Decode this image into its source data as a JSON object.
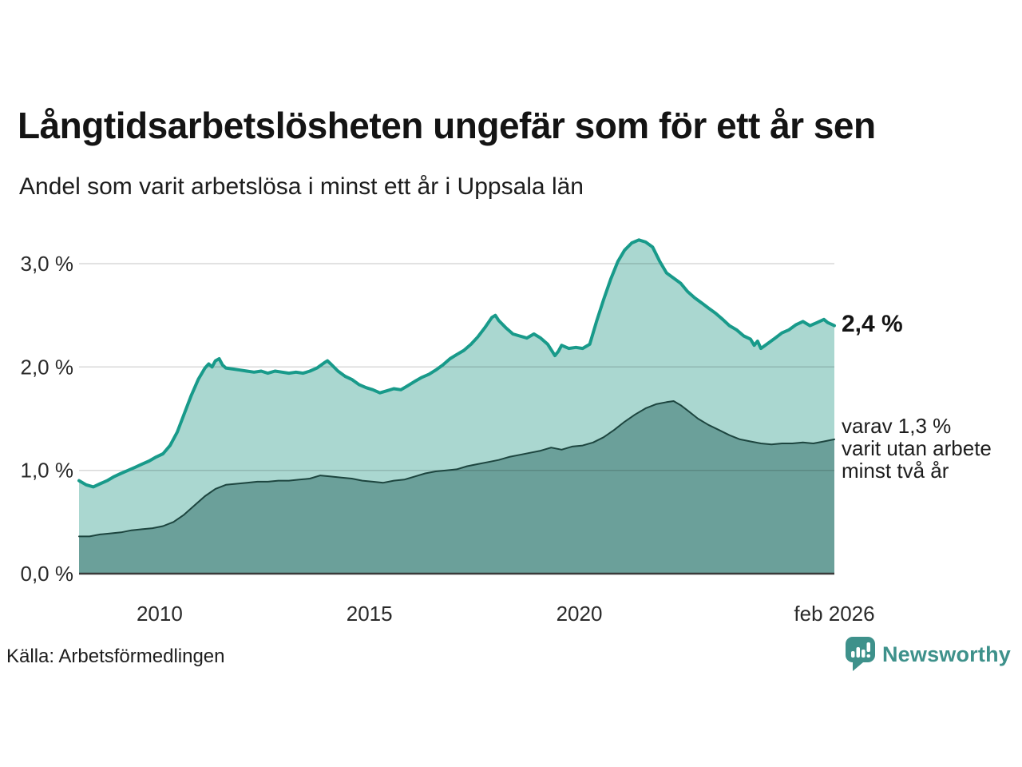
{
  "header": {
    "title": "Långtidsarbetslösheten ungefär som för ett år sen",
    "subtitle": "Andel som varit arbetslösa i minst ett år i Uppsala län"
  },
  "chart_data": {
    "type": "area",
    "title": "Långtidsarbetslösheten ungefär som för ett år sen",
    "subtitle": "Andel som varit arbetslösa i minst ett år i Uppsala län",
    "unit": "%",
    "x_domain": [
      2008.08,
      2026.08
    ],
    "ylim": [
      0,
      3.3
    ],
    "grid": "horizontal-only",
    "legend": "none",
    "y_ticks": [
      {
        "v": 0,
        "label": "0,0 %"
      },
      {
        "v": 1,
        "label": "1,0 %"
      },
      {
        "v": 2,
        "label": "2,0 %"
      },
      {
        "v": 3,
        "label": "3,0 %"
      }
    ],
    "x_ticks": [
      {
        "year": 2010,
        "label": "2010"
      },
      {
        "year": 2015,
        "label": "2015"
      },
      {
        "year": 2020,
        "label": "2020"
      },
      {
        "year": 2026.08,
        "label": "feb 2026"
      }
    ],
    "series": [
      {
        "name": "Andel som varit arbetslösa minst ett år",
        "latest_value": 2.4,
        "line_color": "#189a8a",
        "fill_color": "#aad7d0",
        "line_width": 4,
        "points": [
          [
            2008.08,
            0.9
          ],
          [
            2008.25,
            0.86
          ],
          [
            2008.42,
            0.84
          ],
          [
            2008.58,
            0.87
          ],
          [
            2008.75,
            0.9
          ],
          [
            2008.92,
            0.94
          ],
          [
            2009.08,
            0.97
          ],
          [
            2009.25,
            1.0
          ],
          [
            2009.42,
            1.03
          ],
          [
            2009.58,
            1.06
          ],
          [
            2009.75,
            1.09
          ],
          [
            2009.92,
            1.13
          ],
          [
            2010.08,
            1.16
          ],
          [
            2010.25,
            1.24
          ],
          [
            2010.42,
            1.37
          ],
          [
            2010.58,
            1.54
          ],
          [
            2010.75,
            1.72
          ],
          [
            2010.92,
            1.88
          ],
          [
            2011.08,
            1.99
          ],
          [
            2011.17,
            2.03
          ],
          [
            2011.25,
            2.0
          ],
          [
            2011.33,
            2.06
          ],
          [
            2011.42,
            2.08
          ],
          [
            2011.5,
            2.02
          ],
          [
            2011.58,
            1.99
          ],
          [
            2011.75,
            1.98
          ],
          [
            2011.92,
            1.97
          ],
          [
            2012.08,
            1.96
          ],
          [
            2012.25,
            1.95
          ],
          [
            2012.42,
            1.96
          ],
          [
            2012.58,
            1.94
          ],
          [
            2012.75,
            1.96
          ],
          [
            2012.92,
            1.95
          ],
          [
            2013.08,
            1.94
          ],
          [
            2013.25,
            1.95
          ],
          [
            2013.42,
            1.94
          ],
          [
            2013.58,
            1.96
          ],
          [
            2013.75,
            1.99
          ],
          [
            2013.92,
            2.04
          ],
          [
            2014.0,
            2.06
          ],
          [
            2014.08,
            2.03
          ],
          [
            2014.25,
            1.96
          ],
          [
            2014.42,
            1.91
          ],
          [
            2014.58,
            1.88
          ],
          [
            2014.75,
            1.83
          ],
          [
            2014.92,
            1.8
          ],
          [
            2015.08,
            1.78
          ],
          [
            2015.25,
            1.75
          ],
          [
            2015.42,
            1.77
          ],
          [
            2015.58,
            1.79
          ],
          [
            2015.75,
            1.78
          ],
          [
            2015.92,
            1.82
          ],
          [
            2016.08,
            1.86
          ],
          [
            2016.25,
            1.9
          ],
          [
            2016.42,
            1.93
          ],
          [
            2016.58,
            1.97
          ],
          [
            2016.75,
            2.02
          ],
          [
            2016.92,
            2.08
          ],
          [
            2017.08,
            2.12
          ],
          [
            2017.25,
            2.16
          ],
          [
            2017.42,
            2.22
          ],
          [
            2017.58,
            2.29
          ],
          [
            2017.75,
            2.38
          ],
          [
            2017.92,
            2.48
          ],
          [
            2018.0,
            2.5
          ],
          [
            2018.08,
            2.45
          ],
          [
            2018.25,
            2.38
          ],
          [
            2018.42,
            2.32
          ],
          [
            2018.58,
            2.3
          ],
          [
            2018.75,
            2.28
          ],
          [
            2018.92,
            2.32
          ],
          [
            2019.08,
            2.28
          ],
          [
            2019.25,
            2.22
          ],
          [
            2019.42,
            2.11
          ],
          [
            2019.5,
            2.15
          ],
          [
            2019.58,
            2.21
          ],
          [
            2019.75,
            2.18
          ],
          [
            2019.92,
            2.19
          ],
          [
            2020.08,
            2.18
          ],
          [
            2020.25,
            2.22
          ],
          [
            2020.42,
            2.45
          ],
          [
            2020.58,
            2.65
          ],
          [
            2020.75,
            2.85
          ],
          [
            2020.92,
            3.02
          ],
          [
            2021.08,
            3.13
          ],
          [
            2021.25,
            3.2
          ],
          [
            2021.42,
            3.23
          ],
          [
            2021.58,
            3.21
          ],
          [
            2021.75,
            3.16
          ],
          [
            2021.92,
            3.02
          ],
          [
            2022.08,
            2.91
          ],
          [
            2022.25,
            2.86
          ],
          [
            2022.42,
            2.81
          ],
          [
            2022.58,
            2.73
          ],
          [
            2022.75,
            2.67
          ],
          [
            2022.92,
            2.62
          ],
          [
            2023.08,
            2.57
          ],
          [
            2023.25,
            2.52
          ],
          [
            2023.42,
            2.46
          ],
          [
            2023.58,
            2.4
          ],
          [
            2023.75,
            2.36
          ],
          [
            2023.92,
            2.3
          ],
          [
            2024.08,
            2.27
          ],
          [
            2024.17,
            2.21
          ],
          [
            2024.25,
            2.25
          ],
          [
            2024.33,
            2.18
          ],
          [
            2024.5,
            2.23
          ],
          [
            2024.67,
            2.28
          ],
          [
            2024.83,
            2.33
          ],
          [
            2025.0,
            2.36
          ],
          [
            2025.17,
            2.41
          ],
          [
            2025.33,
            2.44
          ],
          [
            2025.5,
            2.4
          ],
          [
            2025.67,
            2.43
          ],
          [
            2025.83,
            2.46
          ],
          [
            2025.92,
            2.43
          ],
          [
            2026.08,
            2.4
          ]
        ]
      },
      {
        "name": "varav arbetslösa minst två år",
        "latest_value": 1.3,
        "line_color": "#1d453f",
        "fill_color": "#6ba09a",
        "line_width": 2,
        "points": [
          [
            2008.08,
            0.36
          ],
          [
            2008.33,
            0.36
          ],
          [
            2008.58,
            0.38
          ],
          [
            2008.83,
            0.39
          ],
          [
            2009.08,
            0.4
          ],
          [
            2009.33,
            0.42
          ],
          [
            2009.58,
            0.43
          ],
          [
            2009.83,
            0.44
          ],
          [
            2010.08,
            0.46
          ],
          [
            2010.33,
            0.5
          ],
          [
            2010.58,
            0.57
          ],
          [
            2010.83,
            0.66
          ],
          [
            2011.08,
            0.75
          ],
          [
            2011.33,
            0.82
          ],
          [
            2011.58,
            0.86
          ],
          [
            2011.83,
            0.87
          ],
          [
            2012.08,
            0.88
          ],
          [
            2012.33,
            0.89
          ],
          [
            2012.58,
            0.89
          ],
          [
            2012.83,
            0.9
          ],
          [
            2013.08,
            0.9
          ],
          [
            2013.33,
            0.91
          ],
          [
            2013.58,
            0.92
          ],
          [
            2013.83,
            0.95
          ],
          [
            2014.08,
            0.94
          ],
          [
            2014.33,
            0.93
          ],
          [
            2014.58,
            0.92
          ],
          [
            2014.83,
            0.9
          ],
          [
            2015.08,
            0.89
          ],
          [
            2015.33,
            0.88
          ],
          [
            2015.58,
            0.9
          ],
          [
            2015.83,
            0.91
          ],
          [
            2016.08,
            0.94
          ],
          [
            2016.33,
            0.97
          ],
          [
            2016.58,
            0.99
          ],
          [
            2016.83,
            1.0
          ],
          [
            2017.08,
            1.01
          ],
          [
            2017.33,
            1.04
          ],
          [
            2017.58,
            1.06
          ],
          [
            2017.83,
            1.08
          ],
          [
            2018.08,
            1.1
          ],
          [
            2018.33,
            1.13
          ],
          [
            2018.58,
            1.15
          ],
          [
            2018.83,
            1.17
          ],
          [
            2019.08,
            1.19
          ],
          [
            2019.33,
            1.22
          ],
          [
            2019.58,
            1.2
          ],
          [
            2019.83,
            1.23
          ],
          [
            2020.08,
            1.24
          ],
          [
            2020.33,
            1.27
          ],
          [
            2020.58,
            1.32
          ],
          [
            2020.83,
            1.39
          ],
          [
            2021.08,
            1.47
          ],
          [
            2021.33,
            1.54
          ],
          [
            2021.58,
            1.6
          ],
          [
            2021.83,
            1.64
          ],
          [
            2022.08,
            1.66
          ],
          [
            2022.25,
            1.67
          ],
          [
            2022.42,
            1.63
          ],
          [
            2022.58,
            1.58
          ],
          [
            2022.83,
            1.5
          ],
          [
            2023.08,
            1.44
          ],
          [
            2023.33,
            1.39
          ],
          [
            2023.58,
            1.34
          ],
          [
            2023.83,
            1.3
          ],
          [
            2024.08,
            1.28
          ],
          [
            2024.33,
            1.26
          ],
          [
            2024.58,
            1.25
          ],
          [
            2024.83,
            1.26
          ],
          [
            2025.08,
            1.26
          ],
          [
            2025.33,
            1.27
          ],
          [
            2025.58,
            1.26
          ],
          [
            2025.83,
            1.28
          ],
          [
            2026.08,
            1.3
          ]
        ]
      }
    ],
    "annotations": {
      "latest_value": "2,4 %",
      "secondary_note": "varav 1,3 %\nvarit utan arbete\nminst två år"
    },
    "colors": {
      "gridline": "#d9d9d9",
      "baseline": "#3a3a3a"
    }
  },
  "footer": {
    "source": "Källa: Arbetsförmedlingen",
    "brand": "Newsworthy",
    "brand_color": "#3e918b",
    "brand_icon": "newsworthy-speech-bubble-bar-chart"
  }
}
